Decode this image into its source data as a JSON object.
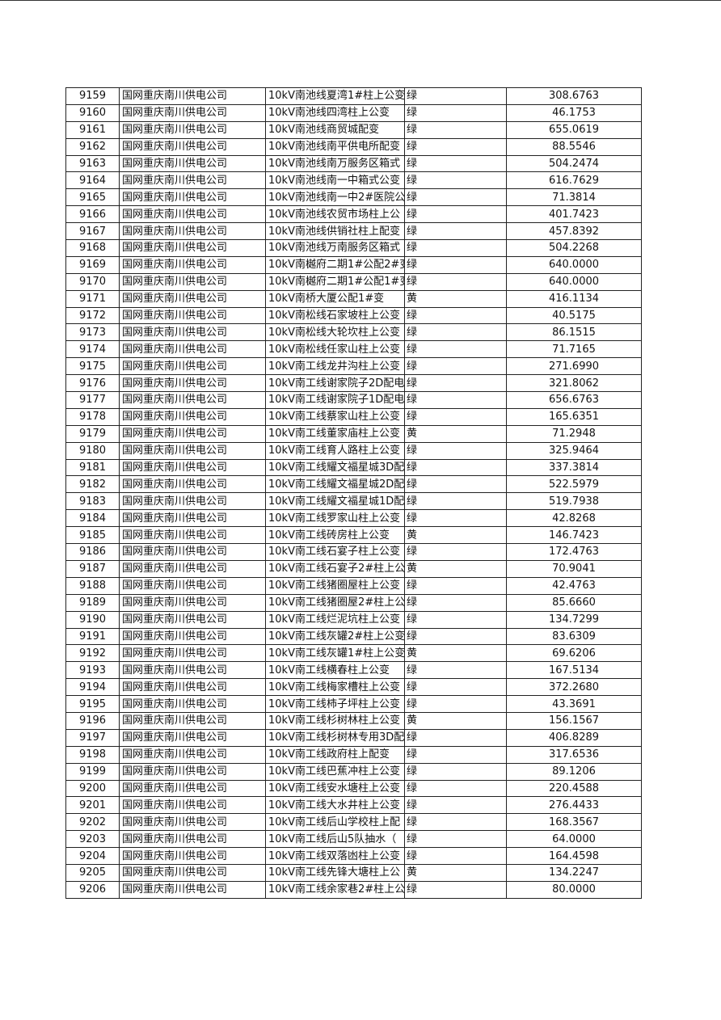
{
  "company": "国网重庆南川供电公司",
  "rows": [
    [
      "9159",
      "10kV南池线夏湾1#柱上公变",
      "绿",
      "308.6763"
    ],
    [
      "9160",
      "10kV南池线四湾柱上公变",
      "绿",
      "46.1753"
    ],
    [
      "9161",
      "10kV南池线商贸城配变",
      "绿",
      "655.0619"
    ],
    [
      "9162",
      "10kV南池线南平供电所配变",
      "绿",
      "88.5546"
    ],
    [
      "9163",
      "10kV南池线南万服务区箱式",
      "绿",
      "504.2474"
    ],
    [
      "9164",
      "10kV南池线南一中箱式公变",
      "绿",
      "616.7629"
    ],
    [
      "9165",
      "10kV南池线南一中2#医院公",
      "绿",
      "71.3814"
    ],
    [
      "9166",
      "10kV南池线农贸市场柱上公",
      "绿",
      "401.7423"
    ],
    [
      "9167",
      "10kV南池线供销社柱上配变",
      "绿",
      "457.8392"
    ],
    [
      "9168",
      "10kV南池线万南服务区箱式",
      "绿",
      "504.2268"
    ],
    [
      "9169",
      "10kV南樾府二期1#公配2#变",
      "绿",
      "640.0000"
    ],
    [
      "9170",
      "10kV南樾府二期1#公配1#变",
      "绿",
      "640.0000"
    ],
    [
      "9171",
      "10kV南桥大厦公配1#变",
      "黄",
      "416.1134"
    ],
    [
      "9172",
      "10kV南松线石家坡柱上公变",
      "绿",
      "40.5175"
    ],
    [
      "9173",
      "10kV南松线大轮坎柱上公变",
      "绿",
      "86.1515"
    ],
    [
      "9174",
      "10kV南松线任家山柱上公变",
      "绿",
      "71.7165"
    ],
    [
      "9175",
      "10kV南工线龙井沟柱上公变",
      "绿",
      "271.6990"
    ],
    [
      "9176",
      "10kV南工线谢家院子2D配电",
      "绿",
      "321.8062"
    ],
    [
      "9177",
      "10kV南工线谢家院子1D配电",
      "绿",
      "656.6763"
    ],
    [
      "9178",
      "10kV南工线蔡家山柱上公变",
      "绿",
      "165.6351"
    ],
    [
      "9179",
      "10kV南工线董家庙柱上公变",
      "黄",
      "71.2948"
    ],
    [
      "9180",
      "10kV南工线育人路柱上公变",
      "绿",
      "325.9464"
    ],
    [
      "9181",
      "10kV南工线耀文福星城3D配",
      "绿",
      "337.3814"
    ],
    [
      "9182",
      "10kV南工线耀文福星城2D配",
      "绿",
      "522.5979"
    ],
    [
      "9183",
      "10kV南工线耀文福星城1D配",
      "绿",
      "519.7938"
    ],
    [
      "9184",
      "10kV南工线罗家山柱上公变",
      "绿",
      "42.8268"
    ],
    [
      "9185",
      "10kV南工线砖房柱上公变",
      "黄",
      "146.7423"
    ],
    [
      "9186",
      "10kV南工线石宴子柱上公变",
      "绿",
      "172.4763"
    ],
    [
      "9187",
      "10kV南工线石宴子2#柱上公",
      "黄",
      "70.9041"
    ],
    [
      "9188",
      "10kV南工线猪圈屋柱上公变",
      "绿",
      "42.4763"
    ],
    [
      "9189",
      "10kV南工线猪圈屋2#柱上公",
      "绿",
      "85.6660"
    ],
    [
      "9190",
      "10kV南工线烂泥坑柱上公变",
      "绿",
      "134.7299"
    ],
    [
      "9191",
      "10kV南工线灰罐2#柱上公变",
      "绿",
      "83.6309"
    ],
    [
      "9192",
      "10kV南工线灰罐1#柱上公变",
      "黄",
      "69.6206"
    ],
    [
      "9193",
      "10kV南工线横春柱上公变",
      "绿",
      "167.5134"
    ],
    [
      "9194",
      "10kV南工线梅家槽柱上公变",
      "绿",
      "372.2680"
    ],
    [
      "9195",
      "10kV南工线柿子坪柱上公变",
      "绿",
      "43.3691"
    ],
    [
      "9196",
      "10kV南工线杉树林柱上公变",
      "黄",
      "156.1567"
    ],
    [
      "9197",
      "10kV南工线杉树林专用3D配",
      "绿",
      "406.8289"
    ],
    [
      "9198",
      "10kV南工线政府柱上配变",
      "绿",
      "317.6536"
    ],
    [
      "9199",
      "10kV南工线巴蕉冲柱上公变",
      "绿",
      "89.1206"
    ],
    [
      "9200",
      "10kV南工线安水塘柱上公变",
      "绿",
      "220.4588"
    ],
    [
      "9201",
      "10kV南工线大水井柱上公变",
      "绿",
      "276.4433"
    ],
    [
      "9202",
      "10kV南工线后山学校柱上配",
      "绿",
      "168.3567"
    ],
    [
      "9203",
      "10kV南工线后山5队抽水（",
      "绿",
      "64.0000"
    ],
    [
      "9204",
      "10kV南工线双落凼柱上公变",
      "绿",
      "164.4598"
    ],
    [
      "9205",
      "10kV南工线先锋大塘柱上公",
      "黄",
      "134.2247"
    ],
    [
      "9206",
      "10kV南工线余家巷2#柱上公",
      "绿",
      "80.0000"
    ]
  ]
}
